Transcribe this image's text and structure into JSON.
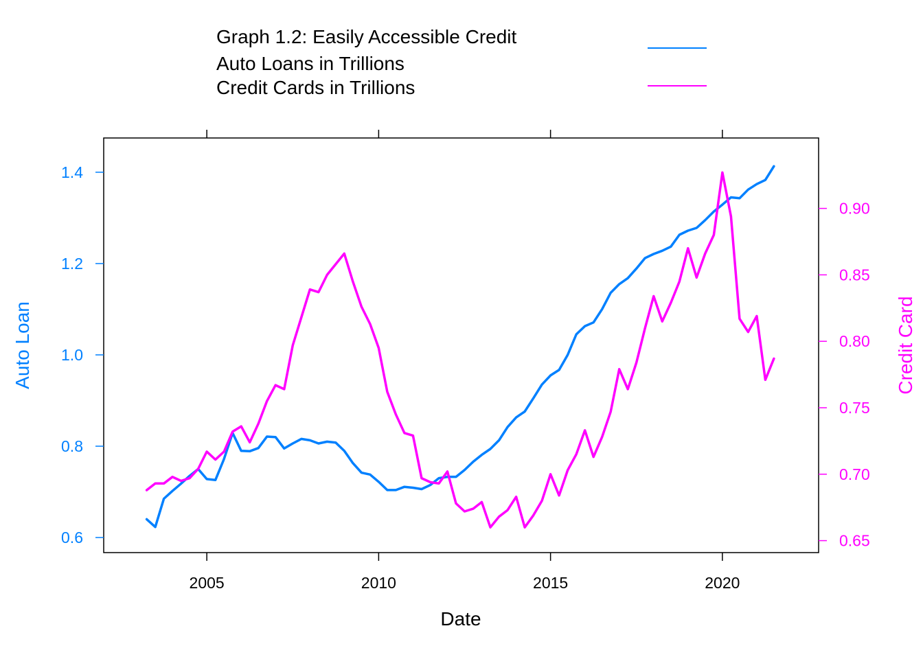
{
  "chart_data": {
    "type": "line",
    "legend": {
      "title": "Graph 1.2: Easily Accessible Credit",
      "placement": "top",
      "entries": [
        {
          "label": "Auto Loans in Trillions",
          "color": "#0080ff"
        },
        {
          "label": "Credit Cards in Trillions",
          "color": "#ff00ff"
        }
      ]
    },
    "xlabel": "Date",
    "ylabel_left": "Auto Loan",
    "ylabel_right": "Credit Card",
    "xlim": [
      2002.0,
      2022.8
    ],
    "ylim_left": [
      0.567,
      1.475
    ],
    "ylim_right": [
      0.641,
      0.953
    ],
    "x_ticks": [
      2005,
      2010,
      2015,
      2020
    ],
    "y_ticks_left": [
      "0.6",
      "0.8",
      "1.0",
      "1.2",
      "1.4"
    ],
    "y_ticks_right": [
      "0.65",
      "0.70",
      "0.75",
      "0.80",
      "0.85",
      "0.90"
    ],
    "grid": false,
    "series": [
      {
        "name": "Auto Loans in Trillions",
        "axis": "left",
        "color": "#0080ff",
        "x": [
          2003.25,
          2003.5,
          2003.75,
          2004.0,
          2004.25,
          2004.5,
          2004.75,
          2005.0,
          2005.25,
          2005.5,
          2005.75,
          2006.0,
          2006.25,
          2006.5,
          2006.75,
          2007.0,
          2007.25,
          2007.5,
          2007.75,
          2008.0,
          2008.25,
          2008.5,
          2008.75,
          2009.0,
          2009.25,
          2009.5,
          2009.75,
          2010.0,
          2010.25,
          2010.5,
          2010.75,
          2011.0,
          2011.25,
          2011.5,
          2011.75,
          2012.0,
          2012.25,
          2012.5,
          2012.75,
          2013.0,
          2013.25,
          2013.5,
          2013.75,
          2014.0,
          2014.25,
          2014.5,
          2014.75,
          2015.0,
          2015.25,
          2015.5,
          2015.75,
          2016.0,
          2016.25,
          2016.5,
          2016.75,
          2017.0,
          2017.25,
          2017.5,
          2017.75,
          2018.0,
          2018.25,
          2018.5,
          2018.75,
          2019.0,
          2019.25,
          2019.5,
          2019.75,
          2020.0,
          2020.25,
          2020.5,
          2020.75,
          2021.0,
          2021.25,
          2021.5
        ],
        "values": [
          0.64,
          0.623,
          0.685,
          0.702,
          0.718,
          0.735,
          0.75,
          0.728,
          0.726,
          0.772,
          0.829,
          0.79,
          0.789,
          0.796,
          0.821,
          0.82,
          0.795,
          0.806,
          0.816,
          0.813,
          0.806,
          0.81,
          0.808,
          0.79,
          0.763,
          0.742,
          0.738,
          0.722,
          0.704,
          0.704,
          0.711,
          0.709,
          0.706,
          0.715,
          0.73,
          0.733,
          0.733,
          0.748,
          0.766,
          0.781,
          0.794,
          0.813,
          0.842,
          0.863,
          0.876,
          0.905,
          0.935,
          0.955,
          0.967,
          1.0,
          1.045,
          1.063,
          1.071,
          1.1,
          1.136,
          1.155,
          1.168,
          1.189,
          1.212,
          1.221,
          1.228,
          1.237,
          1.263,
          1.272,
          1.278,
          1.295,
          1.314,
          1.329,
          1.345,
          1.343,
          1.362,
          1.374,
          1.383,
          1.413
        ]
      },
      {
        "name": "Credit Cards in Trillions",
        "axis": "right",
        "color": "#ff00ff",
        "x": [
          2003.25,
          2003.5,
          2003.75,
          2004.0,
          2004.25,
          2004.5,
          2004.75,
          2005.0,
          2005.25,
          2005.5,
          2005.75,
          2006.0,
          2006.25,
          2006.5,
          2006.75,
          2007.0,
          2007.25,
          2007.5,
          2007.75,
          2008.0,
          2008.25,
          2008.5,
          2008.75,
          2009.0,
          2009.25,
          2009.5,
          2009.75,
          2010.0,
          2010.25,
          2010.5,
          2010.75,
          2011.0,
          2011.25,
          2011.5,
          2011.75,
          2012.0,
          2012.25,
          2012.5,
          2012.75,
          2013.0,
          2013.25,
          2013.5,
          2013.75,
          2014.0,
          2014.25,
          2014.5,
          2014.75,
          2015.0,
          2015.25,
          2015.5,
          2015.75,
          2016.0,
          2016.25,
          2016.5,
          2016.75,
          2017.0,
          2017.25,
          2017.5,
          2017.75,
          2018.0,
          2018.25,
          2018.5,
          2018.75,
          2019.0,
          2019.25,
          2019.5,
          2019.75,
          2020.0,
          2020.25,
          2020.5,
          2020.75,
          2021.0,
          2021.25,
          2021.5
        ],
        "values": [
          0.688,
          0.693,
          0.693,
          0.698,
          0.695,
          0.697,
          0.704,
          0.717,
          0.711,
          0.717,
          0.732,
          0.736,
          0.724,
          0.738,
          0.755,
          0.767,
          0.764,
          0.797,
          0.818,
          0.839,
          0.837,
          0.85,
          0.858,
          0.866,
          0.845,
          0.826,
          0.813,
          0.795,
          0.762,
          0.745,
          0.731,
          0.729,
          0.697,
          0.694,
          0.693,
          0.702,
          0.678,
          0.672,
          0.674,
          0.679,
          0.66,
          0.668,
          0.673,
          0.683,
          0.66,
          0.669,
          0.68,
          0.7,
          0.684,
          0.703,
          0.715,
          0.733,
          0.713,
          0.728,
          0.747,
          0.779,
          0.764,
          0.784,
          0.81,
          0.834,
          0.815,
          0.829,
          0.845,
          0.87,
          0.848,
          0.866,
          0.88,
          0.927,
          0.894,
          0.817,
          0.807,
          0.819,
          0.771,
          0.787
        ]
      }
    ]
  }
}
